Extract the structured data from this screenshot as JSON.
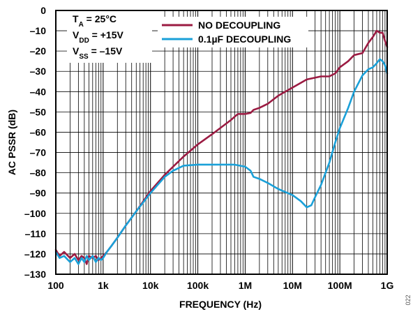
{
  "chart_data": {
    "type": "line",
    "xlabel": "FREQUENCY (Hz)",
    "ylabel": "AC PSSR (dB)",
    "x_scale": "log",
    "xlim": [
      100,
      1000000000
    ],
    "ylim": [
      -130,
      0
    ],
    "grid": true,
    "x_ticks": [
      {
        "value": 100,
        "label": "100"
      },
      {
        "value": 1000,
        "label": "1k"
      },
      {
        "value": 10000,
        "label": "10k"
      },
      {
        "value": 100000,
        "label": "100k"
      },
      {
        "value": 1000000,
        "label": "1M"
      },
      {
        "value": 10000000,
        "label": "10M"
      },
      {
        "value": 100000000,
        "label": "100M"
      },
      {
        "value": 1000000000,
        "label": "1G"
      }
    ],
    "y_ticks": [
      {
        "value": 0,
        "label": "0"
      },
      {
        "value": -10,
        "label": "–10"
      },
      {
        "value": -20,
        "label": "–20"
      },
      {
        "value": -30,
        "label": "–30"
      },
      {
        "value": -40,
        "label": "–40"
      },
      {
        "value": -50,
        "label": "–50"
      },
      {
        "value": -60,
        "label": "–60"
      },
      {
        "value": -70,
        "label": "–70"
      },
      {
        "value": -80,
        "label": "–80"
      },
      {
        "value": -90,
        "label": "–90"
      },
      {
        "value": -100,
        "label": "–100"
      },
      {
        "value": -110,
        "label": "–110"
      },
      {
        "value": -120,
        "label": "–120"
      },
      {
        "value": -130,
        "label": "–130"
      }
    ],
    "conditions": {
      "ta": {
        "main": "T",
        "sub": "A",
        "rest": " = 25°C"
      },
      "vdd": {
        "main": "V",
        "sub": "DD",
        "rest": " = +15V"
      },
      "vss": {
        "main": "V",
        "sub": "SS",
        "rest": " = –15V"
      }
    },
    "legend_position": "top-center",
    "figure_id": "022",
    "series": [
      {
        "name": "NO DECOUPLING",
        "color": "#9b1b42",
        "points": [
          [
            100,
            -118
          ],
          [
            120,
            -121
          ],
          [
            150,
            -119
          ],
          [
            200,
            -122
          ],
          [
            250,
            -120
          ],
          [
            300,
            -123
          ],
          [
            350,
            -121
          ],
          [
            400,
            -122
          ],
          [
            450,
            -125
          ],
          [
            500,
            -121
          ],
          [
            600,
            -122
          ],
          [
            700,
            -121
          ],
          [
            800,
            -123
          ],
          [
            900,
            -122
          ],
          [
            1000,
            -121
          ],
          [
            1200,
            -119
          ],
          [
            1500,
            -116
          ],
          [
            2000,
            -112
          ],
          [
            3000,
            -106
          ],
          [
            5000,
            -99
          ],
          [
            10000,
            -89
          ],
          [
            20000,
            -81
          ],
          [
            50000,
            -72
          ],
          [
            100000,
            -66
          ],
          [
            200000,
            -61
          ],
          [
            500000,
            -54
          ],
          [
            700000,
            -51
          ],
          [
            1000000,
            -51
          ],
          [
            1300000,
            -50.5
          ],
          [
            1500000,
            -49
          ],
          [
            2000000,
            -48
          ],
          [
            3000000,
            -46
          ],
          [
            5000000,
            -42
          ],
          [
            10000000,
            -38
          ],
          [
            20000000,
            -34
          ],
          [
            40000000,
            -32.5
          ],
          [
            60000000,
            -32.5
          ],
          [
            80000000,
            -31
          ],
          [
            100000000,
            -28
          ],
          [
            150000000,
            -25
          ],
          [
            200000000,
            -22
          ],
          [
            300000000,
            -21
          ],
          [
            400000000,
            -16
          ],
          [
            500000000,
            -13
          ],
          [
            600000000,
            -10
          ],
          [
            700000000,
            -11
          ],
          [
            800000000,
            -11
          ],
          [
            900000000,
            -15
          ],
          [
            1000000000,
            -18
          ]
        ]
      },
      {
        "name": "0.1µF DECOUPLING",
        "color": "#1aa0d8",
        "points": [
          [
            100,
            -119
          ],
          [
            120,
            -122
          ],
          [
            150,
            -121
          ],
          [
            200,
            -124
          ],
          [
            250,
            -122
          ],
          [
            300,
            -125
          ],
          [
            350,
            -122
          ],
          [
            400,
            -124
          ],
          [
            450,
            -121
          ],
          [
            500,
            -123
          ],
          [
            600,
            -121
          ],
          [
            700,
            -124
          ],
          [
            800,
            -122
          ],
          [
            900,
            -123
          ],
          [
            1000,
            -122
          ],
          [
            1200,
            -119
          ],
          [
            1500,
            -116
          ],
          [
            2000,
            -112
          ],
          [
            3000,
            -106
          ],
          [
            5000,
            -99
          ],
          [
            10000,
            -90
          ],
          [
            20000,
            -82
          ],
          [
            30000,
            -79
          ],
          [
            50000,
            -76.5
          ],
          [
            100000,
            -76
          ],
          [
            300000,
            -76
          ],
          [
            600000,
            -76
          ],
          [
            1000000,
            -77
          ],
          [
            1300000,
            -79
          ],
          [
            1500000,
            -82
          ],
          [
            2000000,
            -83
          ],
          [
            3000000,
            -85
          ],
          [
            5000000,
            -88
          ],
          [
            10000000,
            -91
          ],
          [
            15000000,
            -94
          ],
          [
            20000000,
            -97
          ],
          [
            25000000,
            -96
          ],
          [
            30000000,
            -92
          ],
          [
            40000000,
            -86
          ],
          [
            60000000,
            -75
          ],
          [
            80000000,
            -65
          ],
          [
            100000000,
            -58
          ],
          [
            150000000,
            -48
          ],
          [
            200000000,
            -40
          ],
          [
            300000000,
            -32
          ],
          [
            400000000,
            -29
          ],
          [
            500000000,
            -28
          ],
          [
            600000000,
            -26
          ],
          [
            700000000,
            -24
          ],
          [
            800000000,
            -25
          ],
          [
            900000000,
            -27
          ],
          [
            1000000000,
            -31
          ]
        ]
      }
    ]
  }
}
